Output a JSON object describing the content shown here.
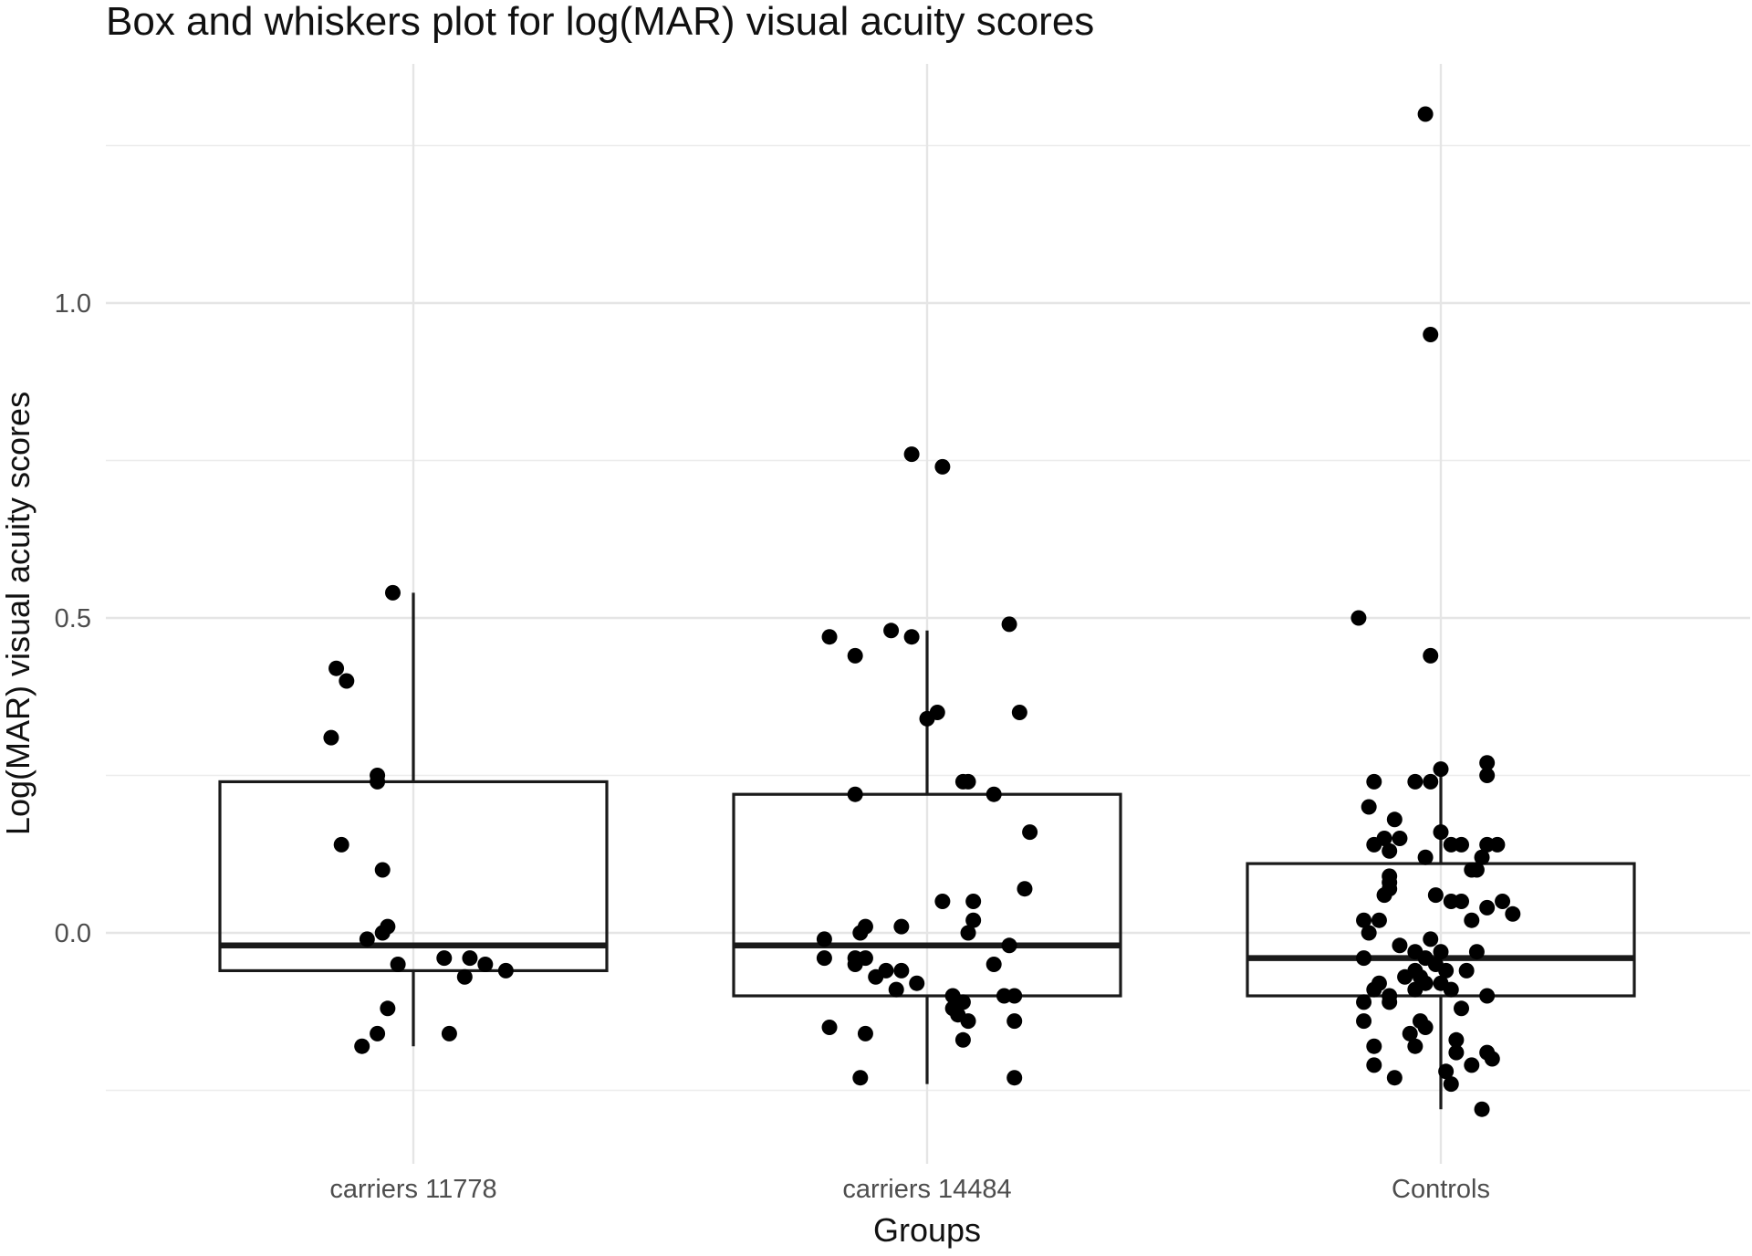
{
  "chart_data": {
    "type": "box",
    "title": "Box and whiskers plot for log(MAR) visual acuity scores",
    "xlabel": "Groups",
    "ylabel": "Log(MAR) visual acuity scores",
    "ylim": [
      -0.36,
      1.38
    ],
    "y_ticks": [
      0.0,
      0.5,
      1.0
    ],
    "y_tick_labels": [
      "0.0",
      "0.5",
      "1.0"
    ],
    "y_minor_gridlines": [
      -0.25,
      0.25,
      0.75,
      1.25
    ],
    "grid": true,
    "categories": [
      "carriers 11778",
      "carriers 14484",
      "Controls"
    ],
    "boxes": [
      {
        "group": "carriers 11778",
        "q1": -0.06,
        "median": -0.02,
        "q3": 0.24,
        "whisker_low": -0.18,
        "whisker_high": 0.54
      },
      {
        "group": "carriers 14484",
        "q1": -0.1,
        "median": -0.02,
        "q3": 0.22,
        "whisker_low": -0.24,
        "whisker_high": 0.48
      },
      {
        "group": "Controls",
        "q1": -0.1,
        "median": -0.04,
        "q3": 0.11,
        "whisker_low": -0.28,
        "whisker_high": 0.26
      }
    ],
    "points": [
      {
        "group": "carriers 11778",
        "values": [
          0.54,
          0.42,
          0.4,
          0.31,
          0.25,
          0.24,
          0.14,
          0.1,
          0.01,
          0.0,
          -0.01,
          -0.05,
          -0.04,
          -0.04,
          -0.05,
          -0.07,
          -0.06,
          -0.12,
          -0.16,
          -0.18,
          -0.16
        ],
        "jitter": [
          -0.04,
          -0.15,
          -0.13,
          -0.16,
          -0.07,
          -0.07,
          -0.14,
          -0.06,
          -0.05,
          -0.06,
          -0.09,
          -0.03,
          0.06,
          0.11,
          0.14,
          0.1,
          0.18,
          -0.05,
          -0.07,
          -0.1,
          0.07
        ]
      },
      {
        "group": "carriers 14484",
        "values": [
          0.76,
          0.74,
          0.49,
          0.48,
          0.47,
          0.47,
          0.44,
          0.35,
          0.34,
          0.35,
          0.24,
          0.24,
          0.22,
          0.22,
          0.16,
          0.07,
          0.05,
          0.05,
          0.02,
          0.01,
          0.0,
          0.0,
          0.01,
          -0.01,
          -0.02,
          -0.04,
          -0.04,
          -0.04,
          -0.05,
          -0.06,
          -0.06,
          -0.07,
          -0.05,
          -0.08,
          -0.09,
          -0.1,
          -0.1,
          -0.1,
          -0.11,
          -0.12,
          -0.13,
          -0.14,
          -0.14,
          -0.15,
          -0.16,
          -0.17,
          -0.23,
          -0.23
        ],
        "jitter": [
          -0.03,
          0.03,
          0.16,
          -0.07,
          -0.19,
          -0.03,
          -0.14,
          0.02,
          0.0,
          0.18,
          0.07,
          0.08,
          -0.14,
          0.13,
          0.2,
          0.19,
          0.03,
          0.09,
          0.09,
          -0.12,
          -0.13,
          0.08,
          -0.05,
          -0.2,
          0.16,
          -0.2,
          -0.14,
          -0.12,
          -0.14,
          -0.08,
          -0.05,
          -0.1,
          0.13,
          -0.02,
          -0.06,
          0.05,
          0.15,
          0.17,
          0.07,
          0.05,
          0.06,
          0.17,
          0.08,
          -0.19,
          -0.12,
          0.07,
          0.17,
          -0.13
        ]
      },
      {
        "group": "Controls",
        "values": [
          1.3,
          0.95,
          0.5,
          0.44,
          0.27,
          0.26,
          0.25,
          0.24,
          0.24,
          0.24,
          0.2,
          0.18,
          0.16,
          0.15,
          0.15,
          0.14,
          0.14,
          0.14,
          0.14,
          0.14,
          0.13,
          0.12,
          0.12,
          0.1,
          0.1,
          0.09,
          0.08,
          0.07,
          0.06,
          0.06,
          0.05,
          0.05,
          0.05,
          0.04,
          0.03,
          0.02,
          0.02,
          0.02,
          0.0,
          -0.01,
          -0.02,
          -0.03,
          -0.03,
          -0.03,
          -0.04,
          -0.04,
          -0.05,
          -0.06,
          -0.06,
          -0.06,
          -0.07,
          -0.07,
          -0.08,
          -0.08,
          -0.08,
          -0.09,
          -0.09,
          -0.09,
          -0.1,
          -0.1,
          -0.11,
          -0.11,
          -0.12,
          -0.14,
          -0.14,
          -0.15,
          -0.16,
          -0.17,
          -0.18,
          -0.18,
          -0.19,
          -0.19,
          -0.2,
          -0.21,
          -0.21,
          -0.22,
          -0.23,
          -0.24,
          -0.28
        ],
        "jitter": [
          -0.03,
          -0.02,
          -0.16,
          -0.02,
          0.09,
          0.0,
          0.09,
          -0.13,
          -0.02,
          -0.05,
          -0.14,
          -0.09,
          0.0,
          -0.08,
          -0.11,
          -0.13,
          0.02,
          0.04,
          0.09,
          0.11,
          -0.1,
          0.08,
          -0.03,
          0.06,
          0.07,
          -0.1,
          -0.1,
          -0.1,
          -0.01,
          -0.11,
          0.04,
          0.12,
          0.02,
          0.09,
          0.14,
          -0.15,
          0.06,
          -0.12,
          -0.14,
          -0.02,
          -0.08,
          0.0,
          0.07,
          -0.05,
          -0.15,
          -0.03,
          -0.01,
          -0.05,
          0.01,
          0.05,
          -0.07,
          -0.04,
          -0.03,
          -0.12,
          0.0,
          -0.13,
          -0.05,
          0.02,
          -0.1,
          0.09,
          -0.15,
          -0.1,
          0.04,
          -0.04,
          -0.15,
          -0.03,
          -0.06,
          0.03,
          -0.13,
          -0.05,
          0.03,
          0.09,
          0.1,
          -0.13,
          0.06,
          0.01,
          -0.09,
          0.02,
          0.08
        ]
      }
    ],
    "colors": {
      "box": "#1a1a1a",
      "points": "#000000",
      "grid": "#e5e5e5",
      "background": "#ffffff"
    }
  }
}
